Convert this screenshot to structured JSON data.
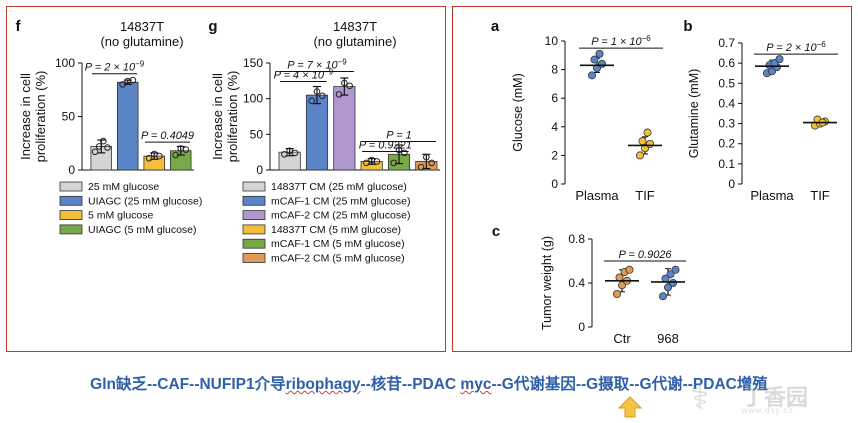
{
  "colors": {
    "frame": "#c0392b",
    "grey": "#d4d4d4",
    "blue": "#5b84c6",
    "yellow": "#f3bf3b",
    "green": "#78a848",
    "purple": "#b197cf",
    "orange": "#e29a57",
    "caption": "#2e5fa8",
    "arrow": "#f4c542"
  },
  "caption": {
    "part1": "Gln缺乏--CAF--NUFIP1介导",
    "part2": "ribophagy",
    "part3": "--核苷--PDAC ",
    "part4": "myc",
    "part5": "--G代谢基因--G摄取--G代谢--PDAC增殖"
  },
  "watermark": {
    "logo": "⚕",
    "main": "丁香园",
    "sub": "www.dxy.cn"
  },
  "chart_data": [
    {
      "id": "f",
      "type": "bar",
      "panel_letter": "f",
      "title": "14837T",
      "subtitle": "(no glutamine)",
      "ylabel_line1": "Increase in cell",
      "ylabel_line2": "proliferation (%)",
      "ylim": [
        0,
        100
      ],
      "yticks": [
        "0",
        "50",
        "100"
      ],
      "series": [
        {
          "name": "25 mM glucose",
          "value": 22,
          "error": 6,
          "color": "#d4d4d4",
          "points": [
            17,
            22,
            27,
            21
          ]
        },
        {
          "name": "UIAGC (25 mM glucose)",
          "value": 82,
          "error": 2,
          "color": "#5b84c6",
          "points": [
            80,
            83,
            84
          ]
        },
        {
          "name": "5 mM glucose",
          "value": 13,
          "error": 3,
          "color": "#f3bf3b",
          "points": [
            11,
            15,
            13
          ]
        },
        {
          "name": "UIAGC (5 mM glucose)",
          "value": 18,
          "error": 4,
          "color": "#78a848",
          "points": [
            14,
            20,
            19
          ]
        }
      ],
      "annotations": [
        {
          "text": "P = 2 × 10",
          "exp": "−9",
          "from": 0,
          "to": 1,
          "y": 90
        },
        {
          "text": "P = 0.4049",
          "exp": "",
          "from": 2,
          "to": 3,
          "y": 26
        }
      ]
    },
    {
      "id": "g",
      "type": "bar",
      "panel_letter": "g",
      "title": "14837T",
      "subtitle": "(no glutamine)",
      "ylabel_line1": "Increase in cell",
      "ylabel_line2": "proliferation (%)",
      "ylim": [
        0,
        150
      ],
      "yticks": [
        "0",
        "50",
        "100",
        "150"
      ],
      "series": [
        {
          "name": "14837T CM (25 mM glucose)",
          "value": 25,
          "error": 5,
          "color": "#d4d4d4",
          "points": [
            22,
            27,
            24
          ]
        },
        {
          "name": "mCAF-1 CM (25 mM glucose)",
          "value": 105,
          "error": 12,
          "color": "#5b84c6",
          "points": [
            97,
            110,
            104
          ]
        },
        {
          "name": "mCAF-2 CM (25 mM glucose)",
          "value": 117,
          "error": 12,
          "color": "#b197cf",
          "points": [
            106,
            122,
            118
          ]
        },
        {
          "name": "14837T CM (5 mM glucose)",
          "value": 12,
          "error": 4,
          "color": "#f3bf3b",
          "points": [
            10,
            14,
            12
          ]
        },
        {
          "name": "mCAF-1 CM (5 mM glucose)",
          "value": 22,
          "error": 13,
          "color": "#78a848",
          "points": [
            10,
            28,
            24
          ]
        },
        {
          "name": "mCAF-2 CM (5 mM glucose)",
          "value": 12,
          "error": 10,
          "color": "#e29a57",
          "points": [
            4,
            18,
            10
          ]
        }
      ],
      "annotations": [
        {
          "text": "P = 7 × 10",
          "exp": "−9",
          "from": 0,
          "to": 2,
          "y": 138
        },
        {
          "text": "P = 4 × 10",
          "exp": "−9",
          "from": 0,
          "to": 1,
          "y": 124
        },
        {
          "text": "P = 1",
          "exp": "",
          "from": 3,
          "to": 5,
          "y": 40
        },
        {
          "text": "P = 0.9221",
          "exp": "",
          "from": 3,
          "to": 4,
          "y": 26
        }
      ]
    },
    {
      "id": "a",
      "type": "scatter",
      "panel_letter": "a",
      "ylabel": "Glucose (mM)",
      "ylim": [
        0,
        10
      ],
      "yticks": [
        "0",
        "2",
        "4",
        "6",
        "8",
        "10"
      ],
      "categories": [
        "Plasma",
        "TIF"
      ],
      "groups": [
        {
          "name": "Plasma",
          "mean": 8.3,
          "sd": 0.5,
          "color": "#5b84c6",
          "points": [
            7.6,
            8.1,
            8.4,
            8.7,
            9.1
          ]
        },
        {
          "name": "TIF",
          "mean": 2.7,
          "sd": 0.6,
          "color": "#f3bf3b",
          "points": [
            2.0,
            2.5,
            2.8,
            3.0,
            3.6
          ]
        }
      ],
      "annotation": {
        "text": "P = 1 × 10",
        "exp": "−6",
        "y": 9.5
      }
    },
    {
      "id": "b",
      "type": "scatter",
      "panel_letter": "b",
      "ylabel": "Glutamine (mM)",
      "ylim": [
        0,
        0.7
      ],
      "yticks": [
        "0",
        "0.1",
        "0.2",
        "0.3",
        "0.4",
        "0.5",
        "0.6",
        "0.7"
      ],
      "categories": [
        "Plasma",
        "TIF"
      ],
      "groups": [
        {
          "name": "Plasma",
          "mean": 0.585,
          "sd": 0.03,
          "color": "#5b84c6",
          "points": [
            0.55,
            0.56,
            0.58,
            0.59,
            0.6,
            0.62
          ]
        },
        {
          "name": "TIF",
          "mean": 0.305,
          "sd": 0.015,
          "color": "#f3bf3b",
          "points": [
            0.29,
            0.3,
            0.31,
            0.32,
            0.305
          ]
        }
      ],
      "annotation": {
        "text": "P = 2 × 10",
        "exp": "−6",
        "y": 0.645
      }
    },
    {
      "id": "c",
      "type": "scatter",
      "panel_letter": "c",
      "ylabel": "Tumor weight (g)",
      "ylim": [
        0,
        0.8
      ],
      "yticks": [
        "0",
        "0.4",
        "0.8"
      ],
      "categories": [
        "Ctr",
        "968"
      ],
      "groups": [
        {
          "name": "Ctr",
          "mean": 0.42,
          "sd": 0.1,
          "color": "#e29a57",
          "points": [
            0.3,
            0.38,
            0.42,
            0.45,
            0.5,
            0.52
          ]
        },
        {
          "name": "968",
          "mean": 0.41,
          "sd": 0.12,
          "color": "#5b84c6",
          "points": [
            0.28,
            0.36,
            0.4,
            0.44,
            0.48,
            0.52
          ]
        }
      ],
      "annotation": {
        "text": "P = 0.9026",
        "exp": "",
        "y": 0.6
      }
    }
  ]
}
